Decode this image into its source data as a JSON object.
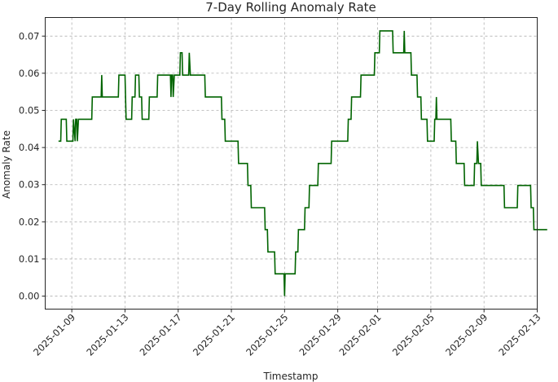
{
  "chart_data": {
    "type": "line",
    "title": "7-Day Rolling Anomaly Rate",
    "xlabel": "Timestamp",
    "ylabel": "Anomaly Rate",
    "grid": true,
    "xlim": [
      "2025-01-07",
      "2025-02-13"
    ],
    "ylim": [
      -0.0035,
      0.075
    ],
    "x_ticks": [
      "2025-01-09",
      "2025-01-13",
      "2025-01-17",
      "2025-01-21",
      "2025-01-25",
      "2025-01-29",
      "2025-02-01",
      "2025-02-05",
      "2025-02-09",
      "2025-02-13"
    ],
    "y_ticks": [
      "0.00",
      "0.01",
      "0.02",
      "0.03",
      "0.04",
      "0.05",
      "0.06",
      "0.07"
    ],
    "series": [
      {
        "color": "#006400",
        "points": [
          [
            "2025-01-08T00:00",
            0.0417
          ],
          [
            "2025-01-08T04:00",
            0.0417
          ],
          [
            "2025-01-08T05:00",
            0.0476
          ],
          [
            "2025-01-08T14:00",
            0.0476
          ],
          [
            "2025-01-08T15:00",
            0.0417
          ],
          [
            "2025-01-09T02:00",
            0.0417
          ],
          [
            "2025-01-09T03:00",
            0.0476
          ],
          [
            "2025-01-09T06:00",
            0.0417
          ],
          [
            "2025-01-09T07:00",
            0.0476
          ],
          [
            "2025-01-09T09:00",
            0.0476
          ],
          [
            "2025-01-09T10:00",
            0.0417
          ],
          [
            "2025-01-09T12:00",
            0.0476
          ],
          [
            "2025-01-10T12:00",
            0.0476
          ],
          [
            "2025-01-10T13:00",
            0.0536
          ],
          [
            "2025-01-11T05:00",
            0.0536
          ],
          [
            "2025-01-11T06:00",
            0.0595
          ],
          [
            "2025-01-11T07:00",
            0.0536
          ],
          [
            "2025-01-12T12:00",
            0.0536
          ],
          [
            "2025-01-12T13:00",
            0.0595
          ],
          [
            "2025-01-13T00:00",
            0.0595
          ],
          [
            "2025-01-13T01:00",
            0.0536
          ],
          [
            "2025-01-13T02:00",
            0.0476
          ],
          [
            "2025-01-13T12:00",
            0.0476
          ],
          [
            "2025-01-13T13:00",
            0.0536
          ],
          [
            "2025-01-13T18:00",
            0.0536
          ],
          [
            "2025-01-13T19:00",
            0.0595
          ],
          [
            "2025-01-14T01:00",
            0.0595
          ],
          [
            "2025-01-14T02:00",
            0.0536
          ],
          [
            "2025-01-14T06:00",
            0.0536
          ],
          [
            "2025-01-14T07:00",
            0.0476
          ],
          [
            "2025-01-14T19:00",
            0.0476
          ],
          [
            "2025-01-14T20:00",
            0.0536
          ],
          [
            "2025-01-15T10:00",
            0.0536
          ],
          [
            "2025-01-15T11:00",
            0.0595
          ],
          [
            "2025-01-16T10:00",
            0.0595
          ],
          [
            "2025-01-16T11:00",
            0.0536
          ],
          [
            "2025-01-16T12:00",
            0.0595
          ],
          [
            "2025-01-16T14:00",
            0.0595
          ],
          [
            "2025-01-16T15:00",
            0.0536
          ],
          [
            "2025-01-16T17:00",
            0.0595
          ],
          [
            "2025-01-17T03:00",
            0.0595
          ],
          [
            "2025-01-17T04:00",
            0.0655
          ],
          [
            "2025-01-17T07:00",
            0.0655
          ],
          [
            "2025-01-17T08:00",
            0.0595
          ],
          [
            "2025-01-17T19:00",
            0.0595
          ],
          [
            "2025-01-17T20:00",
            0.0655
          ],
          [
            "2025-01-17T22:00",
            0.0595
          ],
          [
            "2025-01-19T00:00",
            0.0595
          ],
          [
            "2025-01-19T01:00",
            0.0536
          ],
          [
            "2025-01-20T06:00",
            0.0536
          ],
          [
            "2025-01-20T07:00",
            0.0476
          ],
          [
            "2025-01-20T12:00",
            0.0476
          ],
          [
            "2025-01-20T13:00",
            0.0417
          ],
          [
            "2025-01-21T12:00",
            0.0417
          ],
          [
            "2025-01-21T13:00",
            0.0357
          ],
          [
            "2025-01-22T05:00",
            0.0357
          ],
          [
            "2025-01-22T06:00",
            0.0298
          ],
          [
            "2025-01-22T11:00",
            0.0298
          ],
          [
            "2025-01-22T12:00",
            0.0238
          ],
          [
            "2025-01-23T12:00",
            0.0238
          ],
          [
            "2025-01-23T13:00",
            0.0179
          ],
          [
            "2025-01-23T17:00",
            0.0179
          ],
          [
            "2025-01-23T18:00",
            0.0119
          ],
          [
            "2025-01-24T06:00",
            0.0119
          ],
          [
            "2025-01-24T07:00",
            0.006
          ],
          [
            "2025-01-24T23:00",
            0.006
          ],
          [
            "2025-01-25T00:00",
            0.0
          ],
          [
            "2025-01-25T01:00",
            0.006
          ],
          [
            "2025-01-25T19:00",
            0.006
          ],
          [
            "2025-01-25T20:00",
            0.0119
          ],
          [
            "2025-01-26T00:00",
            0.0119
          ],
          [
            "2025-01-26T01:00",
            0.0179
          ],
          [
            "2025-01-26T12:00",
            0.0179
          ],
          [
            "2025-01-26T13:00",
            0.0238
          ],
          [
            "2025-01-26T20:00",
            0.0238
          ],
          [
            "2025-01-26T21:00",
            0.0298
          ],
          [
            "2025-01-27T12:00",
            0.0298
          ],
          [
            "2025-01-27T13:00",
            0.0357
          ],
          [
            "2025-01-28T12:00",
            0.0357
          ],
          [
            "2025-01-28T13:00",
            0.0417
          ],
          [
            "2025-01-29T18:00",
            0.0417
          ],
          [
            "2025-01-29T19:00",
            0.0476
          ],
          [
            "2025-01-30T00:00",
            0.0476
          ],
          [
            "2025-01-30T01:00",
            0.0536
          ],
          [
            "2025-01-30T17:00",
            0.0536
          ],
          [
            "2025-01-30T18:00",
            0.0595
          ],
          [
            "2025-01-31T18:00",
            0.0595
          ],
          [
            "2025-01-31T19:00",
            0.0655
          ],
          [
            "2025-02-01T03:00",
            0.0655
          ],
          [
            "2025-02-01T04:00",
            0.0714
          ],
          [
            "2025-02-02T03:00",
            0.0714
          ],
          [
            "2025-02-02T04:00",
            0.0655
          ],
          [
            "2025-02-02T23:00",
            0.0655
          ],
          [
            "2025-02-03T00:00",
            0.0714
          ],
          [
            "2025-02-03T01:00",
            0.0655
          ],
          [
            "2025-02-03T12:00",
            0.0655
          ],
          [
            "2025-02-03T13:00",
            0.0595
          ],
          [
            "2025-02-03T23:00",
            0.0595
          ],
          [
            "2025-02-04T00:00",
            0.0536
          ],
          [
            "2025-02-04T06:00",
            0.0536
          ],
          [
            "2025-02-04T07:00",
            0.0476
          ],
          [
            "2025-02-04T17:00",
            0.0476
          ],
          [
            "2025-02-04T18:00",
            0.0417
          ],
          [
            "2025-02-05T06:00",
            0.0417
          ],
          [
            "2025-02-05T07:00",
            0.0476
          ],
          [
            "2025-02-05T09:00",
            0.0476
          ],
          [
            "2025-02-05T10:00",
            0.0536
          ],
          [
            "2025-02-05T11:00",
            0.0476
          ],
          [
            "2025-02-06T12:00",
            0.0476
          ],
          [
            "2025-02-06T13:00",
            0.0417
          ],
          [
            "2025-02-06T21:00",
            0.0417
          ],
          [
            "2025-02-06T22:00",
            0.0357
          ],
          [
            "2025-02-07T12:00",
            0.0357
          ],
          [
            "2025-02-07T13:00",
            0.0298
          ],
          [
            "2025-02-08T06:00",
            0.0298
          ],
          [
            "2025-02-08T07:00",
            0.0357
          ],
          [
            "2025-02-08T11:00",
            0.0357
          ],
          [
            "2025-02-08T12:00",
            0.0417
          ],
          [
            "2025-02-08T14:00",
            0.0357
          ],
          [
            "2025-02-08T18:00",
            0.0357
          ],
          [
            "2025-02-08T19:00",
            0.0298
          ],
          [
            "2025-02-10T12:00",
            0.0298
          ],
          [
            "2025-02-10T13:00",
            0.0238
          ],
          [
            "2025-02-11T12:00",
            0.0238
          ],
          [
            "2025-02-11T13:00",
            0.0298
          ],
          [
            "2025-02-12T12:00",
            0.0298
          ],
          [
            "2025-02-12T13:00",
            0.0238
          ],
          [
            "2025-02-12T17:00",
            0.0238
          ],
          [
            "2025-02-12T18:00",
            0.0179
          ],
          [
            "2025-02-13T18:00",
            0.0179
          ]
        ]
      }
    ]
  }
}
